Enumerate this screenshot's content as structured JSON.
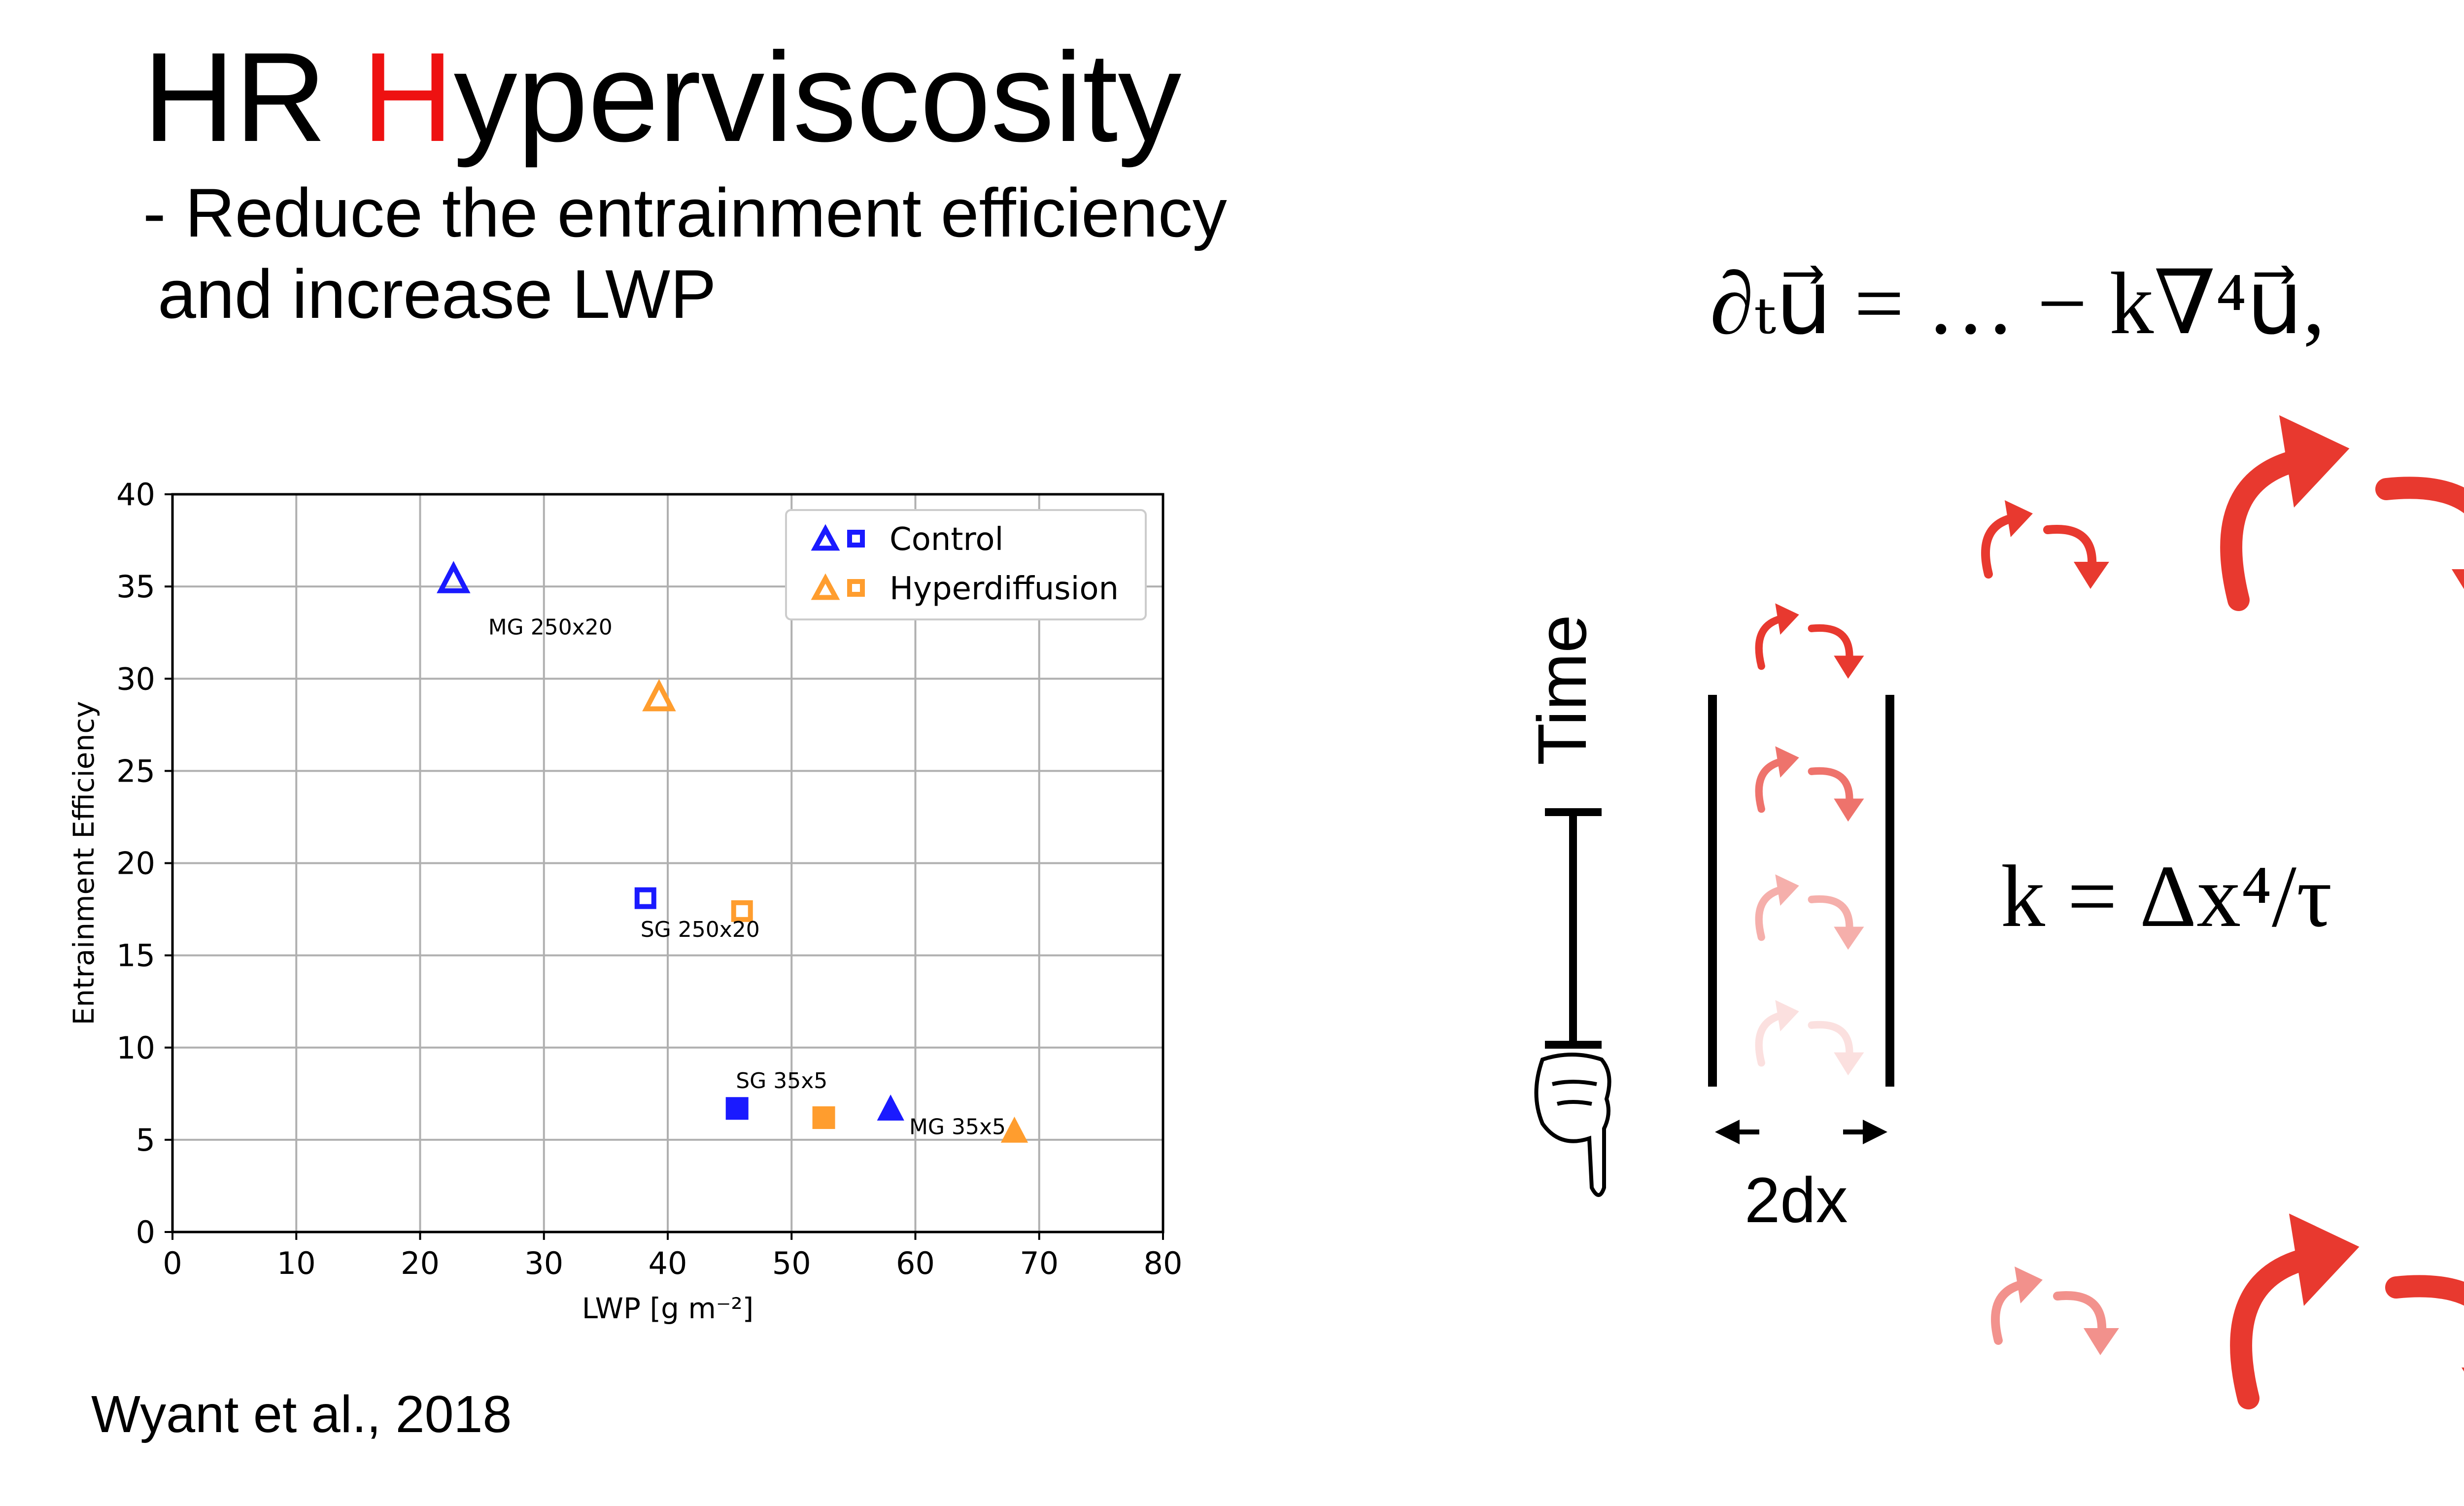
{
  "slide": {
    "title_prefix": "HR ",
    "title_highlight": "H",
    "title_suffix": "yperviscosity",
    "subtitle_line1": "- Reduce the entrainment efficiency",
    "subtitle_line2": "and increase LWP",
    "citation": "Wyant et al., 2018",
    "equation_1": "∂ₜu⃗ = … − k∇⁴u⃗,",
    "equation_2": "k = Δx⁴/τ",
    "time_label": "Time",
    "dx_label": "2dx",
    "colors": {
      "title_highlight": "#ee1111",
      "eddy": "#e8392f",
      "control": "#1a1aff",
      "hyperdiffusion": "#ff9d2e"
    },
    "icons": [
      "hourglass-icon",
      "pointing-hand-icon",
      "eddy-arrow-icon"
    ]
  },
  "chart_data": {
    "type": "scatter",
    "xlabel": "LWP [g m⁻²]",
    "ylabel": "Entrainment Efficiency",
    "xlim": [
      0,
      80
    ],
    "ylim": [
      0,
      40
    ],
    "xticks": [
      "0",
      "10",
      "20",
      "30",
      "40",
      "50",
      "60",
      "70",
      "80"
    ],
    "yticks": [
      "0",
      "5",
      "10",
      "15",
      "20",
      "25",
      "30",
      "35",
      "40"
    ],
    "grid": true,
    "legend_position": "top-right",
    "legend": [
      {
        "label": "Control",
        "color": "#1a1aff"
      },
      {
        "label": "Hyperdiffusion",
        "color": "#ff9d2e"
      }
    ],
    "points": [
      {
        "series": "Control",
        "marker": "triangle",
        "filled": false,
        "x": 22.7,
        "y": 35.3,
        "color": "#1a1aff"
      },
      {
        "series": "Hyperdiffusion",
        "marker": "triangle",
        "filled": false,
        "x": 39.3,
        "y": 28.9,
        "color": "#ff9d2e"
      },
      {
        "series": "Control",
        "marker": "square",
        "filled": false,
        "x": 38.2,
        "y": 18.1,
        "color": "#1a1aff"
      },
      {
        "series": "Hyperdiffusion",
        "marker": "square",
        "filled": false,
        "x": 46.0,
        "y": 17.4,
        "color": "#ff9d2e"
      },
      {
        "series": "Control",
        "marker": "square",
        "filled": true,
        "x": 45.6,
        "y": 6.7,
        "color": "#1a1aff"
      },
      {
        "series": "Hyperdiffusion",
        "marker": "square",
        "filled": true,
        "x": 52.6,
        "y": 6.2,
        "color": "#ff9d2e"
      },
      {
        "series": "Control",
        "marker": "triangle",
        "filled": true,
        "x": 58.0,
        "y": 6.6,
        "color": "#1a1aff"
      },
      {
        "series": "Hyperdiffusion",
        "marker": "triangle",
        "filled": true,
        "x": 68.0,
        "y": 5.4,
        "color": "#ff9d2e"
      }
    ],
    "annotations": [
      {
        "text": "MG 250x20",
        "x": 25.5,
        "y": 32.4
      },
      {
        "text": "SG 250x20",
        "x": 37.8,
        "y": 16.0
      },
      {
        "text": "SG 35x5",
        "x": 45.5,
        "y": 7.8
      },
      {
        "text": "MG 35x5",
        "x": 59.5,
        "y": 5.3
      }
    ]
  }
}
